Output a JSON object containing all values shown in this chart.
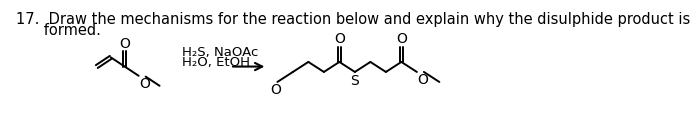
{
  "title_line1": "17.  Draw the mechanisms for the reaction below and explain why the disulphide product is",
  "title_line2": "      formed.",
  "reagents_line1": "H₂S, NaOAc",
  "reagents_line2": "H₂O, EtOH",
  "bg_color": "#ffffff",
  "text_color": "#000000",
  "font_size_title": 10.5,
  "font_size_chem": 10.0,
  "font_size_reagent": 9.5
}
